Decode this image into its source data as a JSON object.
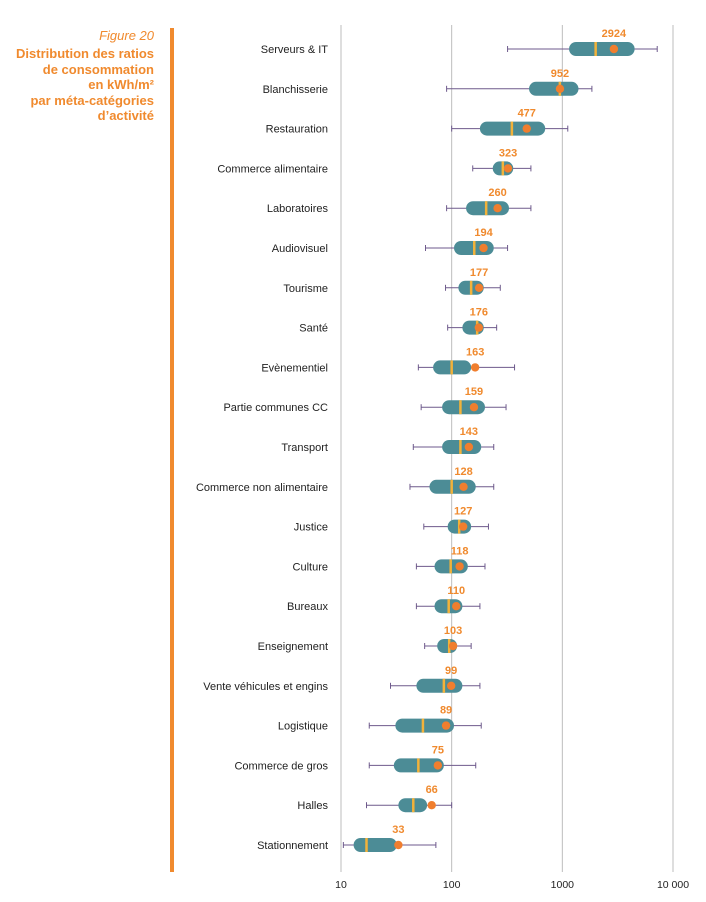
{
  "figure": {
    "number": "Figure 20",
    "title_lines": [
      "Distribution des ratios",
      "de consommation",
      "en kWh/m²",
      "par méta-catégories",
      "d’activité"
    ]
  },
  "colors": {
    "accent": "#F08A2E",
    "box": "#4C8C96",
    "median": "#F2B23A",
    "mean_dot": "#F07E2E",
    "whisker": "#6E5A8C",
    "grid": "#BDBDBD"
  },
  "chart_data": {
    "type": "boxplot",
    "title": "Distribution des ratios de consommation en kWh/m² par méta-catégories d’activité",
    "xscale": "log",
    "xlim": [
      10,
      10000
    ],
    "xticks": [
      10,
      100,
      1000,
      10000
    ],
    "xtick_labels": [
      "10",
      "100",
      "1000",
      "10 000"
    ],
    "grid": "vertical",
    "categories": [
      {
        "name": "Serveurs & IT",
        "label": "2924",
        "mean": 2924,
        "whisker_low": 320,
        "q1": 1150,
        "median": 2000,
        "q3": 4500,
        "whisker_high": 7200
      },
      {
        "name": "Blanchisserie",
        "label": "952",
        "mean": 952,
        "whisker_low": 90,
        "q1": 500,
        "median": 950,
        "q3": 1400,
        "whisker_high": 1850
      },
      {
        "name": "Restauration",
        "label": "477",
        "mean": 477,
        "whisker_low": 100,
        "q1": 180,
        "median": 350,
        "q3": 700,
        "whisker_high": 1120
      },
      {
        "name": "Commerce alimentaire",
        "label": "323",
        "mean": 323,
        "whisker_low": 155,
        "q1": 235,
        "median": 290,
        "q3": 360,
        "whisker_high": 520
      },
      {
        "name": "Laboratoires",
        "label": "260",
        "mean": 260,
        "whisker_low": 90,
        "q1": 135,
        "median": 205,
        "q3": 330,
        "whisker_high": 520
      },
      {
        "name": "Audiovisuel",
        "label": "194",
        "mean": 194,
        "whisker_low": 58,
        "q1": 105,
        "median": 160,
        "q3": 240,
        "whisker_high": 320
      },
      {
        "name": "Tourisme",
        "label": "177",
        "mean": 177,
        "whisker_low": 88,
        "q1": 115,
        "median": 150,
        "q3": 195,
        "whisker_high": 275
      },
      {
        "name": "Santé",
        "label": "176",
        "mean": 176,
        "whisker_low": 92,
        "q1": 125,
        "median": 170,
        "q3": 195,
        "whisker_high": 255
      },
      {
        "name": "Evènementiel",
        "label": "163",
        "mean": 163,
        "whisker_low": 50,
        "q1": 68,
        "median": 100,
        "q3": 150,
        "whisker_high": 370
      },
      {
        "name": "Partie communes CC",
        "label": "159",
        "mean": 159,
        "whisker_low": 53,
        "q1": 82,
        "median": 120,
        "q3": 200,
        "whisker_high": 310
      },
      {
        "name": "Transport",
        "label": "143",
        "mean": 143,
        "whisker_low": 45,
        "q1": 82,
        "median": 120,
        "q3": 185,
        "whisker_high": 240
      },
      {
        "name": "Commerce non alimentaire",
        "label": "128",
        "mean": 128,
        "whisker_low": 42,
        "q1": 63,
        "median": 100,
        "q3": 165,
        "whisker_high": 240
      },
      {
        "name": "Justice",
        "label": "127",
        "mean": 127,
        "whisker_low": 56,
        "q1": 92,
        "median": 117,
        "q3": 150,
        "whisker_high": 215
      },
      {
        "name": "Culture",
        "label": "118",
        "mean": 118,
        "whisker_low": 48,
        "q1": 70,
        "median": 98,
        "q3": 140,
        "whisker_high": 200
      },
      {
        "name": "Bureaux",
        "label": "110",
        "mean": 110,
        "whisker_low": 48,
        "q1": 70,
        "median": 94,
        "q3": 125,
        "whisker_high": 180
      },
      {
        "name": "Enseignement",
        "label": "103",
        "mean": 103,
        "whisker_low": 57,
        "q1": 74,
        "median": 95,
        "q3": 112,
        "whisker_high": 150
      },
      {
        "name": "Vente véhicules et engins",
        "label": "99",
        "mean": 99,
        "whisker_low": 28,
        "q1": 48,
        "median": 85,
        "q3": 125,
        "whisker_high": 180
      },
      {
        "name": "Logistique",
        "label": "89",
        "mean": 89,
        "whisker_low": 18,
        "q1": 31,
        "median": 55,
        "q3": 105,
        "whisker_high": 185
      },
      {
        "name": "Commerce de gros",
        "label": "75",
        "mean": 75,
        "whisker_low": 18,
        "q1": 30,
        "median": 50,
        "q3": 85,
        "whisker_high": 165
      },
      {
        "name": "Halles",
        "label": "66",
        "mean": 66,
        "whisker_low": 17,
        "q1": 33,
        "median": 45,
        "q3": 60,
        "whisker_high": 100
      },
      {
        "name": "Stationnement",
        "label": "33",
        "mean": 33,
        "whisker_low": 10.5,
        "q1": 13,
        "median": 17,
        "q3": 32,
        "whisker_high": 72
      }
    ]
  }
}
